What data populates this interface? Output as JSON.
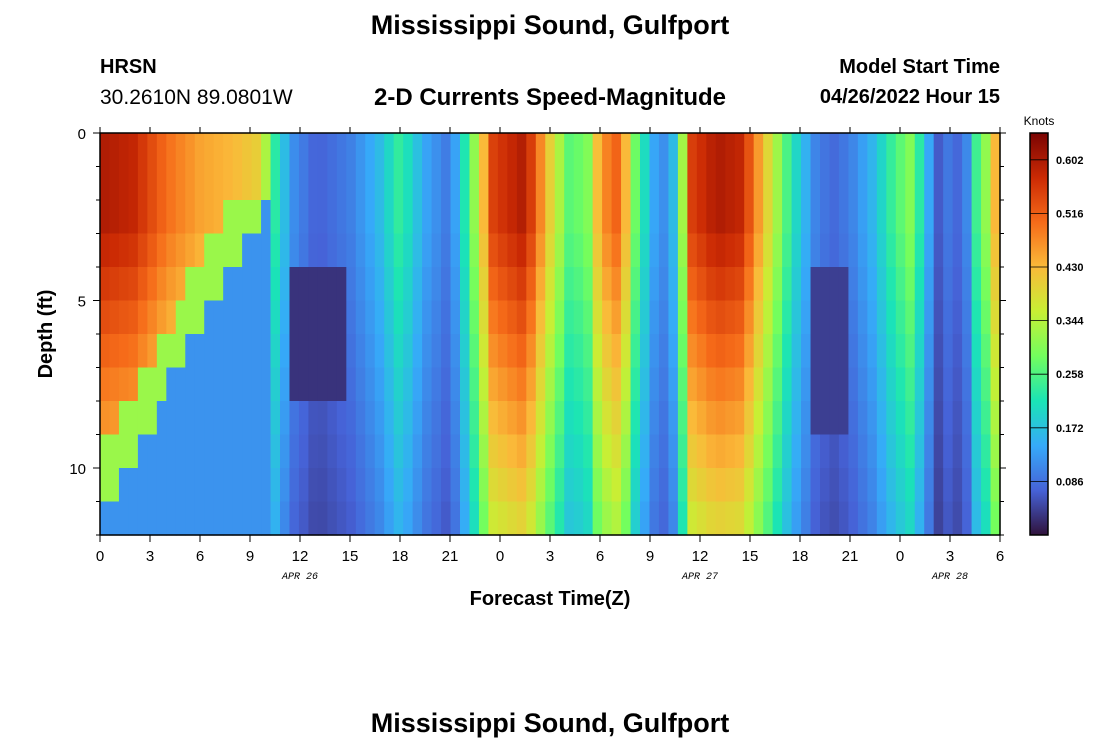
{
  "header": {
    "title": "Mississippi Sound, Gulfport",
    "station": "HRSN",
    "coordinates": "30.2610N  89.0801W",
    "model_start_label": "Model Start Time",
    "model_start_value": "04/26/2022 Hour 15",
    "footer_title": "Mississippi Sound, Gulfport"
  },
  "chart_data": {
    "type": "heatmap",
    "title": "2-D Currents Speed-Magnitude",
    "xlabel": "Forecast Time(Z)",
    "ylabel": "Depth (ft)",
    "x_hours_range": [
      0,
      54
    ],
    "ylim": [
      0,
      12
    ],
    "y_reversed": true,
    "x_tick_labels": [
      "0",
      "3",
      "6",
      "9",
      "12",
      "15",
      "18",
      "21",
      "0",
      "3",
      "6",
      "9",
      "12",
      "15",
      "18",
      "21",
      "0",
      "3",
      "6"
    ],
    "y_tick_labels": [
      "0",
      "5",
      "10"
    ],
    "y_tick_values": [
      0,
      5,
      10
    ],
    "date_labels": [
      {
        "text": "APR 26",
        "hour": 12
      },
      {
        "text": "APR 27",
        "hour": 36
      },
      {
        "text": "APR 28",
        "hour": 51
      }
    ],
    "colorbar": {
      "label": "Knots",
      "range": [
        0.0,
        0.645
      ],
      "tick_labels": [
        "0.602",
        "0.516",
        "0.430",
        "0.344",
        "0.258",
        "0.172",
        "0.086"
      ],
      "tick_values": [
        0.602,
        0.516,
        0.43,
        0.344,
        0.258,
        0.172,
        0.086
      ],
      "colormap": [
        "#30123b",
        "#4662d7",
        "#36aaf9",
        "#1ae4b6",
        "#72fe5e",
        "#c8ef34",
        "#faba39",
        "#f66b19",
        "#cb2a04",
        "#7a0403"
      ]
    },
    "grid": false,
    "legend": "none"
  }
}
